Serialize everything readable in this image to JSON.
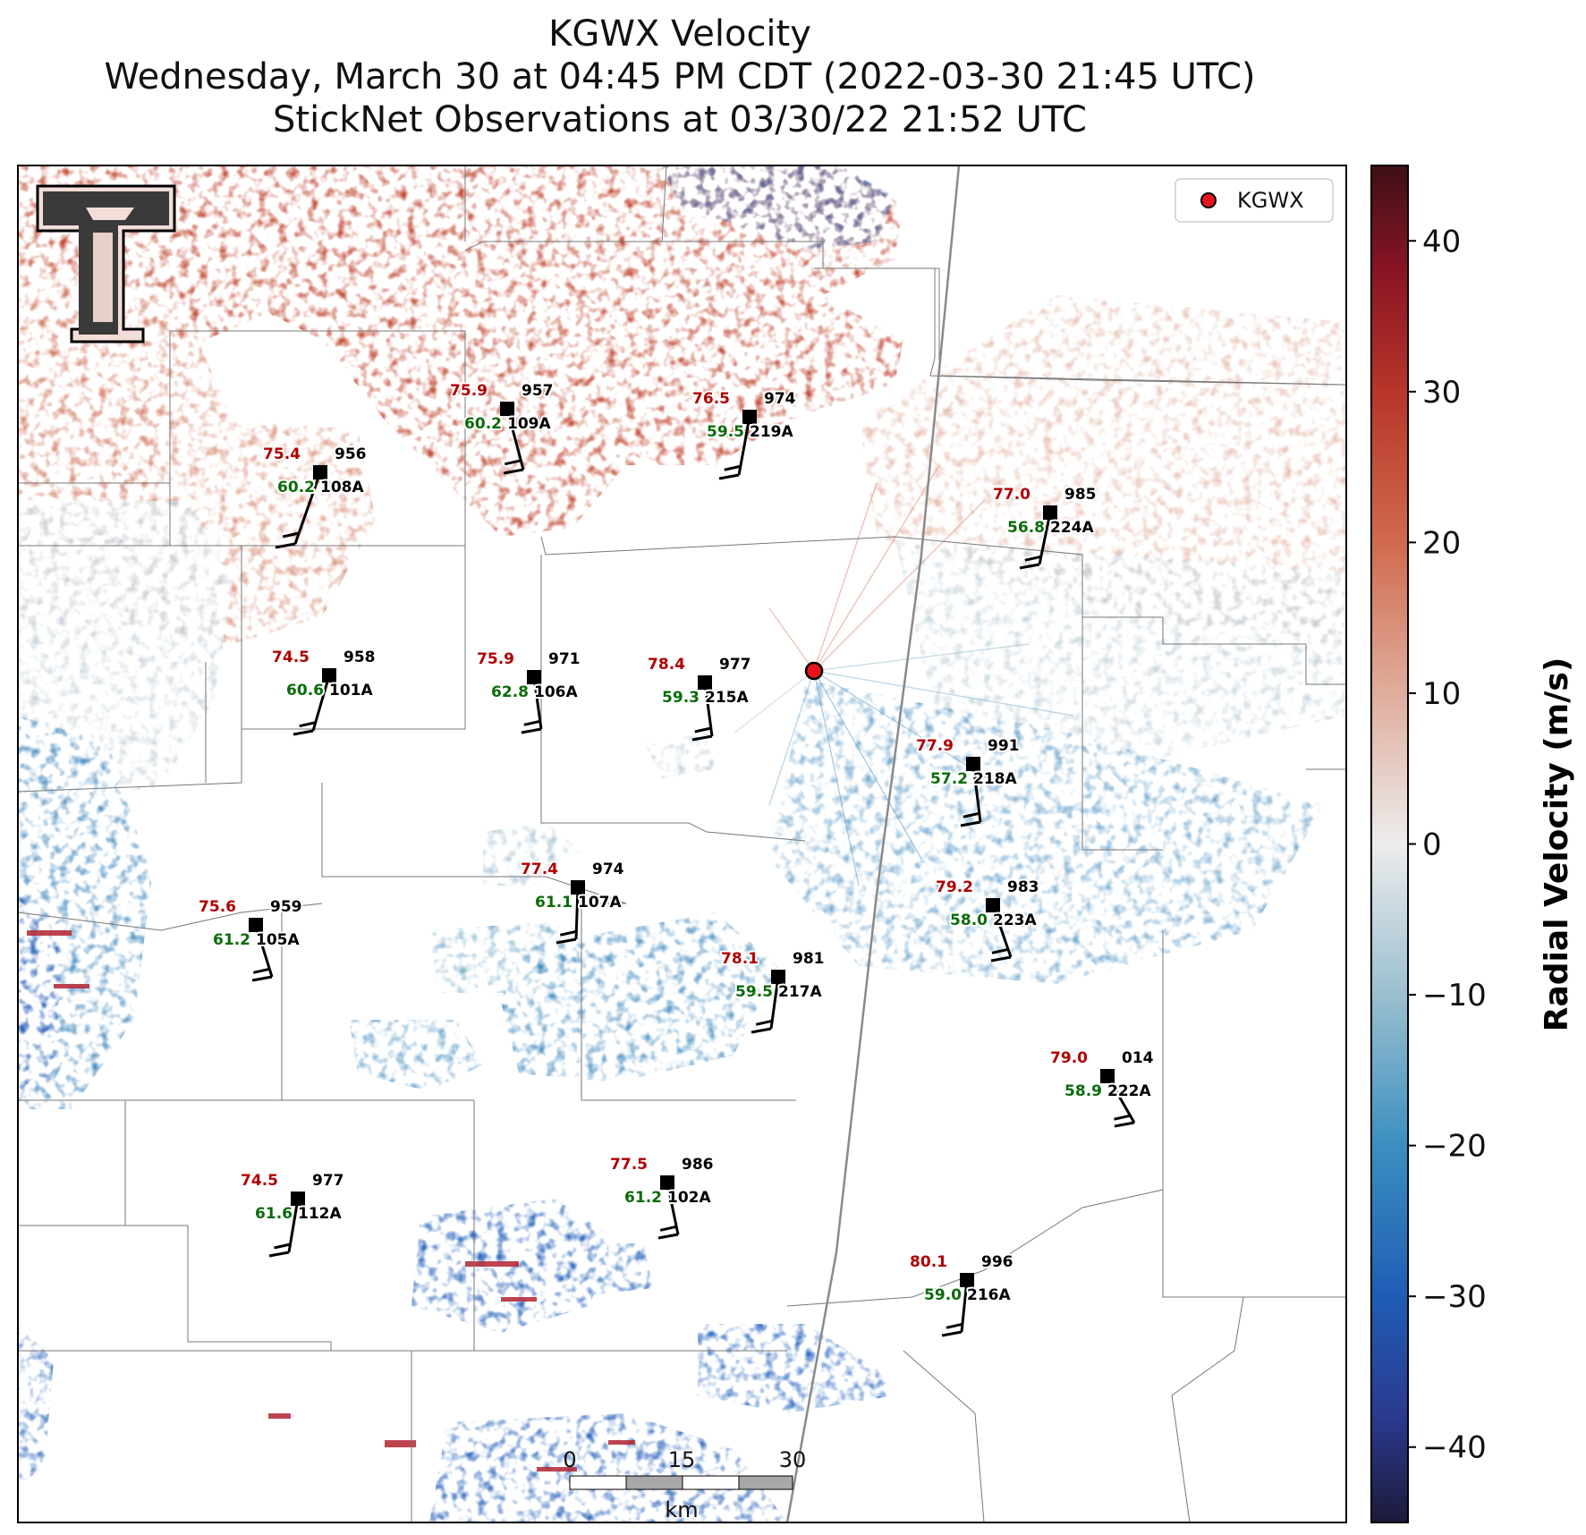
{
  "title": {
    "line1": "KGWX Velocity",
    "line2": "Wednesday, March 30 at 04:45 PM CDT (2022-03-30 21:45 UTC)",
    "line3": "StickNet Observations at 03/30/22 21:52 UTC"
  },
  "legend": {
    "label": "KGWX",
    "marker_color": "#e8141c"
  },
  "radar_site": {
    "name": "KGWX"
  },
  "colorbar": {
    "label": "Radial Velocity (m/s)",
    "range": [
      -45,
      45
    ],
    "ticks": [
      {
        "value": 40,
        "label": "40"
      },
      {
        "value": 30,
        "label": "30"
      },
      {
        "value": 20,
        "label": "20"
      },
      {
        "value": 10,
        "label": "10"
      },
      {
        "value": 0,
        "label": "0"
      },
      {
        "value": -10,
        "label": "−10"
      },
      {
        "value": -20,
        "label": "−20"
      },
      {
        "value": -30,
        "label": "−30"
      },
      {
        "value": -40,
        "label": "−40"
      }
    ],
    "stops": [
      {
        "value": -45,
        "color": "#1c1a3a"
      },
      {
        "value": -38,
        "color": "#2b3a8f"
      },
      {
        "value": -30,
        "color": "#1f5db5"
      },
      {
        "value": -20,
        "color": "#3a8fc0"
      },
      {
        "value": -10,
        "color": "#9bbfd0"
      },
      {
        "value": 0,
        "color": "#ececec"
      },
      {
        "value": 10,
        "color": "#e0ad9c"
      },
      {
        "value": 20,
        "color": "#d06a4e"
      },
      {
        "value": 30,
        "color": "#b8362a"
      },
      {
        "value": 38,
        "color": "#8a1424"
      },
      {
        "value": 45,
        "color": "#3e1016"
      }
    ]
  },
  "scale_bar": {
    "unit": "km",
    "labels": [
      "0",
      "15",
      "30"
    ]
  },
  "logo": {
    "name": "texas-tech-double-t-logo",
    "text": "TT"
  },
  "stations": [
    {
      "id": "108A",
      "temp": "75.4",
      "dew": "60.2",
      "pres": "956"
    },
    {
      "id": "109A",
      "temp": "75.9",
      "dew": "60.2",
      "pres": "957"
    },
    {
      "id": "219A",
      "temp": "76.5",
      "dew": "59.5",
      "pres": "974"
    },
    {
      "id": "224A",
      "temp": "77.0",
      "dew": "56.8",
      "pres": "985"
    },
    {
      "id": "101A",
      "temp": "74.5",
      "dew": "60.6",
      "pres": "958"
    },
    {
      "id": "106A",
      "temp": "75.9",
      "dew": "62.8",
      "pres": "971"
    },
    {
      "id": "215A",
      "temp": "78.4",
      "dew": "59.3",
      "pres": "977"
    },
    {
      "id": "218A",
      "temp": "77.9",
      "dew": "57.2",
      "pres": "991"
    },
    {
      "id": "107A",
      "temp": "77.4",
      "dew": "61.1",
      "pres": "974"
    },
    {
      "id": "105A",
      "temp": "75.6",
      "dew": "61.2",
      "pres": "959"
    },
    {
      "id": "223A",
      "temp": "79.2",
      "dew": "58.0",
      "pres": "983"
    },
    {
      "id": "217A",
      "temp": "78.1",
      "dew": "59.5",
      "pres": "981"
    },
    {
      "id": "222A",
      "temp": "79.0",
      "dew": "58.9",
      "pres": "014"
    },
    {
      "id": "112A",
      "temp": "74.5",
      "dew": "61.6",
      "pres": "977"
    },
    {
      "id": "102A",
      "temp": "77.5",
      "dew": "61.2",
      "pres": "986"
    },
    {
      "id": "216A",
      "temp": "80.1",
      "dew": "59.0",
      "pres": "996"
    }
  ]
}
